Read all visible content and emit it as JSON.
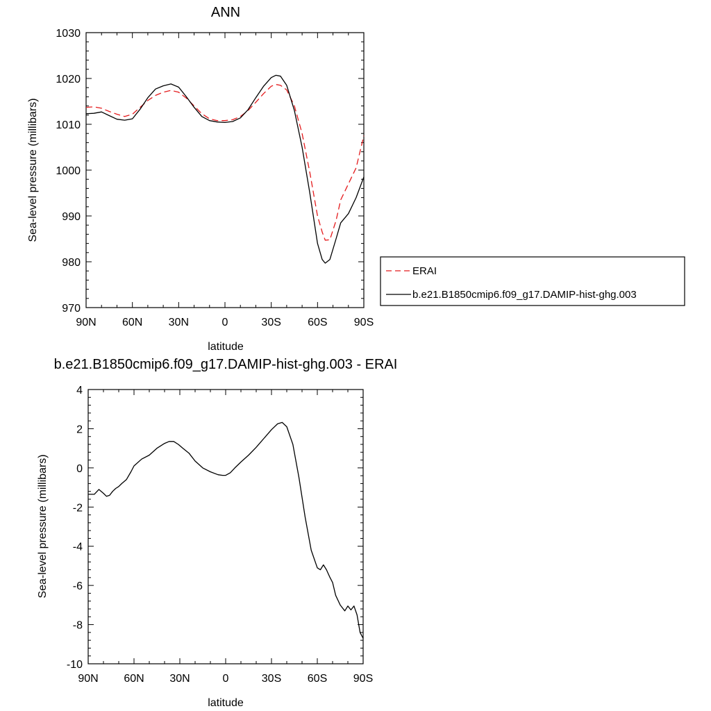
{
  "chart_data": [
    {
      "type": "line",
      "title": "ANN",
      "xlabel": "latitude",
      "ylabel": "Sea-level pressure (millibars)",
      "xlim": [
        90,
        -90
      ],
      "ylim": [
        970,
        1030
      ],
      "xticks": [
        {
          "v": 90,
          "label": "90N"
        },
        {
          "v": 60,
          "label": "60N"
        },
        {
          "v": 30,
          "label": "30N"
        },
        {
          "v": 0,
          "label": "0"
        },
        {
          "v": -30,
          "label": "30S"
        },
        {
          "v": -60,
          "label": "60S"
        },
        {
          "v": -90,
          "label": "90S"
        }
      ],
      "yticks": [
        {
          "v": 1030,
          "label": "1030"
        },
        {
          "v": 1020,
          "label": "1020"
        },
        {
          "v": 1010,
          "label": "1010"
        },
        {
          "v": 1000,
          "label": "1000"
        },
        {
          "v": 990,
          "label": "990"
        },
        {
          "v": 980,
          "label": "980"
        },
        {
          "v": 970,
          "label": "970"
        }
      ],
      "legend": {
        "placement": "right",
        "entries": [
          {
            "label": "ERAI",
            "style": "dashed",
            "color": "#e41a1c"
          },
          {
            "label": "b.e21.B1850cmip6.f09_g17.DAMIP-hist-ghg.003",
            "style": "solid",
            "color": "#000000"
          }
        ]
      },
      "series": [
        {
          "name": "ERAI",
          "color": "#e41a1c",
          "dash": true,
          "x": [
            90,
            85,
            80,
            75,
            70,
            65,
            60,
            55,
            50,
            45,
            40,
            35,
            30,
            25,
            20,
            15,
            10,
            5,
            0,
            -5,
            -10,
            -15,
            -20,
            -25,
            -30,
            -33,
            -36,
            -40,
            -45,
            -50,
            -55,
            -60,
            -63,
            -65,
            -68,
            -72,
            -75,
            -80,
            -85,
            -90
          ],
          "y": [
            1013.7,
            1013.8,
            1013.5,
            1012.8,
            1012.2,
            1011.7,
            1012.2,
            1013.7,
            1015.2,
            1016.3,
            1017.0,
            1017.4,
            1017.0,
            1015.7,
            1014.0,
            1012.3,
            1011.2,
            1010.8,
            1010.8,
            1011.0,
            1011.7,
            1013.0,
            1014.8,
            1016.7,
            1018.3,
            1018.7,
            1018.5,
            1017.5,
            1014.0,
            1008.0,
            999.5,
            990.0,
            986.5,
            984.7,
            984.8,
            989.0,
            993.5,
            997.0,
            1000.5,
            1007.5
          ]
        },
        {
          "name": "b.e21.B1850cmip6.f09_g17.DAMIP-hist-ghg.003",
          "color": "#000000",
          "dash": false,
          "x": [
            90,
            85,
            80,
            75,
            70,
            65,
            60,
            55,
            50,
            45,
            40,
            35,
            30,
            25,
            20,
            15,
            10,
            5,
            0,
            -5,
            -10,
            -15,
            -20,
            -25,
            -30,
            -33,
            -36,
            -40,
            -45,
            -50,
            -55,
            -60,
            -63,
            -65,
            -68,
            -72,
            -75,
            -80,
            -85,
            -90
          ],
          "y": [
            1012.3,
            1012.4,
            1012.7,
            1011.9,
            1011.1,
            1010.9,
            1011.2,
            1013.3,
            1015.8,
            1017.7,
            1018.4,
            1018.8,
            1018.1,
            1016.0,
            1013.7,
            1011.7,
            1010.8,
            1010.5,
            1010.4,
            1010.6,
            1011.4,
            1013.2,
            1015.8,
            1018.3,
            1020.2,
            1020.7,
            1020.5,
            1018.5,
            1013.0,
            1005.0,
            995.0,
            984.0,
            980.5,
            979.7,
            980.5,
            985.0,
            988.5,
            990.5,
            994.0,
            998.5
          ]
        }
      ]
    },
    {
      "type": "line",
      "title": "b.e21.B1850cmip6.f09_g17.DAMIP-hist-ghg.003 - ERAI",
      "xlabel": "latitude",
      "ylabel": "Sea-level pressure (millibars)",
      "xlim": [
        90,
        -90
      ],
      "ylim": [
        -10,
        4
      ],
      "xticks": [
        {
          "v": 90,
          "label": "90N"
        },
        {
          "v": 60,
          "label": "60N"
        },
        {
          "v": 30,
          "label": "30N"
        },
        {
          "v": 0,
          "label": "0"
        },
        {
          "v": -30,
          "label": "30S"
        },
        {
          "v": -60,
          "label": "60S"
        },
        {
          "v": -90,
          "label": "90S"
        }
      ],
      "yticks": [
        {
          "v": 4,
          "label": "4"
        },
        {
          "v": 2,
          "label": "2"
        },
        {
          "v": 0,
          "label": "0"
        },
        {
          "v": -2,
          "label": "-2"
        },
        {
          "v": -4,
          "label": "-4"
        },
        {
          "v": -6,
          "label": "-6"
        },
        {
          "v": -8,
          "label": "-8"
        },
        {
          "v": -10,
          "label": "-10"
        }
      ],
      "series": [
        {
          "name": "b.e21.B1850cmip6.f09_g17.DAMIP-hist-ghg.003 - ERAI",
          "color": "#000000",
          "dash": false,
          "x": [
            90,
            86,
            83,
            80,
            78,
            76,
            74,
            72,
            70,
            68,
            65,
            62,
            60,
            55,
            50,
            45,
            40,
            37,
            34,
            31,
            28,
            24,
            20,
            15,
            10,
            5,
            2,
            0,
            -3,
            -6,
            -10,
            -15,
            -20,
            -25,
            -30,
            -34,
            -37,
            -40,
            -44,
            -48,
            -52,
            -56,
            -60,
            -62,
            -64,
            -66,
            -68,
            -70,
            -72,
            -75,
            -78,
            -80,
            -82,
            -84,
            -86,
            -88,
            -90
          ],
          "y": [
            -1.35,
            -1.35,
            -1.1,
            -1.3,
            -1.45,
            -1.4,
            -1.2,
            -1.05,
            -0.95,
            -0.8,
            -0.6,
            -0.2,
            0.1,
            0.45,
            0.65,
            1.0,
            1.25,
            1.35,
            1.35,
            1.2,
            1.0,
            0.75,
            0.35,
            0.0,
            -0.2,
            -0.35,
            -0.38,
            -0.38,
            -0.25,
            0.0,
            0.3,
            0.65,
            1.05,
            1.5,
            1.95,
            2.25,
            2.32,
            2.1,
            1.2,
            -0.5,
            -2.5,
            -4.2,
            -5.1,
            -5.2,
            -4.95,
            -5.2,
            -5.55,
            -5.85,
            -6.5,
            -7.0,
            -7.3,
            -7.05,
            -7.25,
            -7.05,
            -7.5,
            -8.4,
            -8.7
          ]
        }
      ]
    }
  ]
}
